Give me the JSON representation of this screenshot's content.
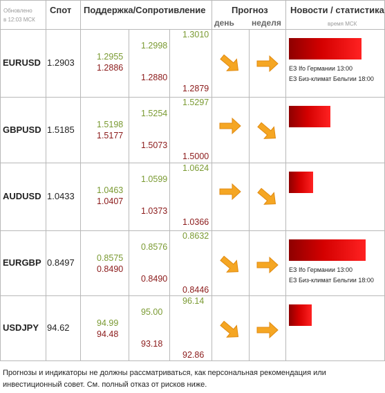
{
  "header": {
    "updated_line1": "Обновлено",
    "updated_line2": "в 12:03 МСК",
    "spot": "Спот",
    "support_resistance": "Поддержка/Сопротивление",
    "forecast": "Прогноз",
    "day": "день",
    "week": "неделя",
    "news": "Новости / статистика",
    "time_msk": "время МСК"
  },
  "rows": [
    {
      "symbol": "EURUSD",
      "spot": "1.2903",
      "s1_res": "1.2955",
      "s1_sup": "1.2886",
      "s2_res": "1.2998",
      "s2_sup": "1.2880",
      "s3_res": "1.3010",
      "s3_sup": "1.2879",
      "day": "down",
      "week": "right",
      "news_level": 0.82,
      "events": [
        "EЗ Ifo Германии 13:00",
        "EЗ Биз-климат Бельгии 18:00"
      ]
    },
    {
      "symbol": "GBPUSD",
      "spot": "1.5185",
      "s1_res": "1.5198",
      "s1_sup": "1.5177",
      "s2_res": "1.5254",
      "s2_sup": "1.5073",
      "s3_res": "1.5297",
      "s3_sup": "1.5000",
      "day": "right",
      "week": "down",
      "news_level": 0.47,
      "events": []
    },
    {
      "symbol": "AUDUSD",
      "spot": "1.0433",
      "s1_res": "1.0463",
      "s1_sup": "1.0407",
      "s2_res": "1.0599",
      "s2_sup": "1.0373",
      "s3_res": "1.0624",
      "s3_sup": "1.0366",
      "day": "right",
      "week": "down",
      "news_level": 0.27,
      "events": []
    },
    {
      "symbol": "EURGBP",
      "spot": "0.8497",
      "s1_res": "0.8575",
      "s1_sup": "0.8490",
      "s2_res": "0.8576",
      "s2_sup": "0.8490",
      "s3_res": "0.8632",
      "s3_sup": "0.8446",
      "day": "down",
      "week": "right",
      "news_level": 0.87,
      "events": [
        "EЗ Ifo Германии 13:00",
        "EЗ Биз-климат Бельгии 18:00"
      ]
    },
    {
      "symbol": "USDJPY",
      "spot": "94.62",
      "s1_res": "94.99",
      "s1_sup": "94.48",
      "s2_res": "95.00",
      "s2_sup": "93.18",
      "s3_res": "96.14",
      "s3_sup": "92.86",
      "day": "down",
      "week": "right",
      "news_level": 0.26,
      "events": []
    }
  ],
  "disclaimer": "Прогнозы и индикаторы не должны рассматриваться, как персональная рекомендация или инвестиционный совет. См. полный отказ от рисков ниже.",
  "colors": {
    "support": "#7a9a32",
    "resistance": "#8b1a1a",
    "arrow": "#f5a623",
    "bar": "#d40000"
  },
  "icons": {
    "arrow_right": "arrow-right-icon",
    "arrow_down": "arrow-down-right-icon"
  }
}
